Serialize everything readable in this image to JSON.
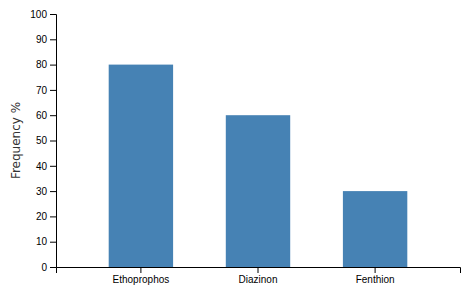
{
  "chart_data": {
    "type": "bar",
    "categories": [
      "Ethoprophos",
      "Diazinon",
      "Fenthion"
    ],
    "values": [
      80,
      60,
      30
    ],
    "ylabel": "Frequency %",
    "ylim": [
      0,
      100
    ],
    "yticks": [
      0,
      10,
      20,
      30,
      40,
      50,
      60,
      70,
      80,
      90,
      100
    ],
    "grid": false
  }
}
